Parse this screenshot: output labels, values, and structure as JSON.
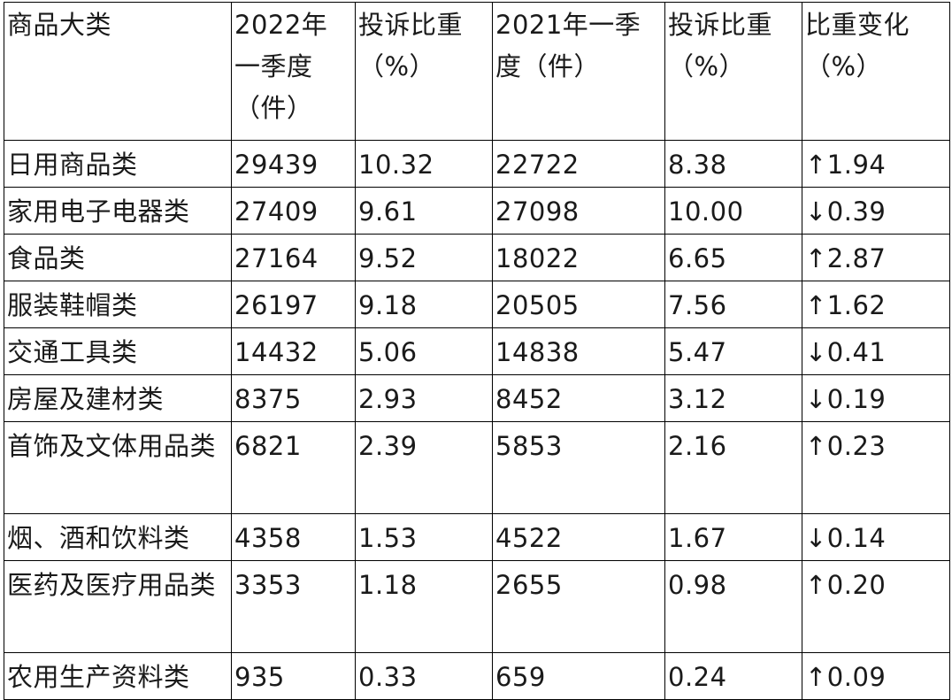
{
  "table": {
    "headers": [
      "商品大类",
      "2022年一季度（件）",
      "投诉比重（%）",
      "2021年一季度（件）",
      "投诉比重（%）",
      "比重变化（%）"
    ],
    "rows": [
      [
        "日用商品类",
        "29439",
        "10.32",
        "22722",
        "8.38",
        "↑1.94"
      ],
      [
        "家用电子电器类",
        "27409",
        "9.61",
        "27098",
        "10.00",
        "↓0.39"
      ],
      [
        "食品类",
        "27164",
        "9.52",
        "18022",
        "6.65",
        "↑2.87"
      ],
      [
        "服装鞋帽类",
        "26197",
        "9.18",
        "20505",
        "7.56",
        "↑1.62"
      ],
      [
        "交通工具类",
        "14432",
        "5.06",
        "14838",
        "5.47",
        "↓0.41"
      ],
      [
        "房屋及建材类",
        "8375",
        "2.93",
        "8452",
        "3.12",
        "↓0.19"
      ],
      [
        "首饰及文体用品类",
        "6821",
        "2.39",
        "5853",
        "2.16",
        "↑0.23"
      ],
      [
        "烟、酒和饮料类",
        "4358",
        "1.53",
        "4522",
        "1.67",
        "↓0.14"
      ],
      [
        "医药及医疗用品类",
        "3353",
        "1.18",
        "2655",
        "0.98",
        "↑0.20"
      ],
      [
        "农用生产资料类",
        "935",
        "0.33",
        "659",
        "0.24",
        "↑0.09"
      ]
    ]
  }
}
